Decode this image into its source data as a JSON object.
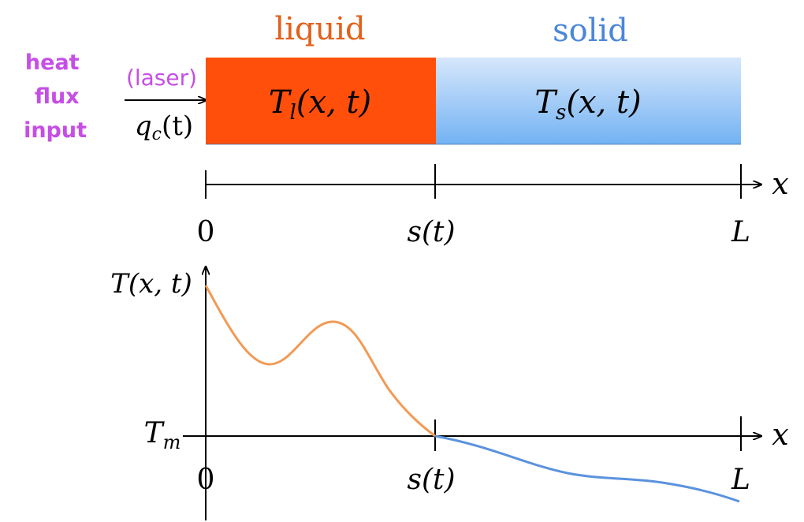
{
  "heat_input": {
    "label_lines": [
      "heat",
      "flux",
      "input"
    ],
    "source": "(laser)",
    "flux_var": "q",
    "flux_sub": "c",
    "flux_arg": "(t)"
  },
  "regions": {
    "liquid": {
      "title": "liquid",
      "var": "T",
      "sub": "l",
      "args": "(x, t)"
    },
    "solid": {
      "title": "solid",
      "var": "T",
      "sub": "s",
      "args": "(x, t)"
    }
  },
  "axis_top": {
    "ticks": [
      "0",
      "s(t)",
      "L"
    ],
    "label": "x"
  },
  "axis_bottom": {
    "ticks": [
      "0",
      "s(t)",
      "L"
    ],
    "label": "x",
    "y_label": "T(x, t)",
    "melt_var": "T",
    "melt_sub": "m"
  },
  "colors": {
    "heat_text": "#c64ee6",
    "liquid_fill": "#ff4f0a",
    "liquid_title": "#e2611c",
    "solid_fill_top": "#d6e7fb",
    "solid_fill_bottom": "#73b2f3",
    "solid_title": "#4b86dc",
    "liquid_curve": "#f29a55",
    "solid_curve": "#5b92de"
  }
}
